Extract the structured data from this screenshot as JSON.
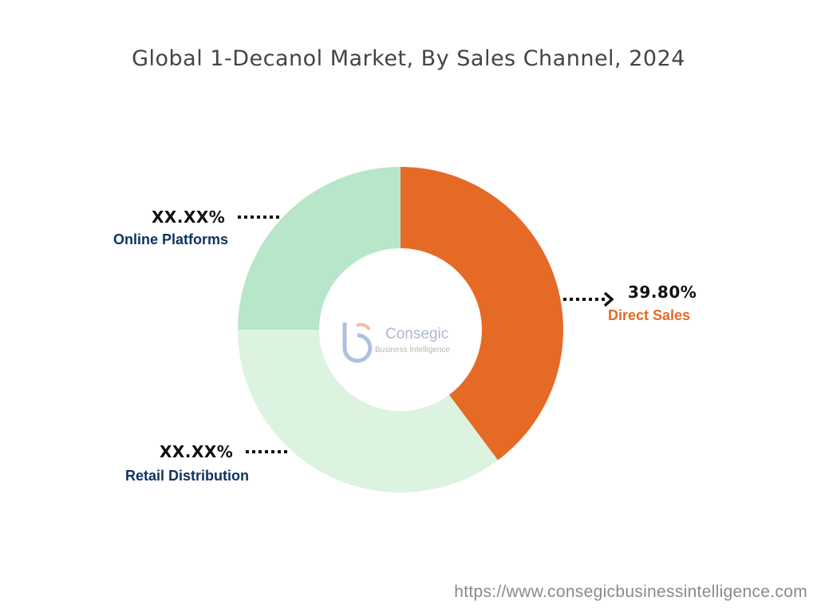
{
  "chart_data": {
    "type": "donut",
    "title": "Global 1-Decanol Market, By Sales Channel, 2024",
    "segments": [
      {
        "name": "Direct Sales",
        "value": 39.8,
        "value_label": "39.80%",
        "color": "#e56a26",
        "label_color": "#e56a26"
      },
      {
        "name": "Retail Distribution",
        "value": 35.2,
        "value_label": "XX.XX%",
        "color": "#dbf3df",
        "label_color": "#0f3460"
      },
      {
        "name": "Online Platforms",
        "value": 25.0,
        "value_label": "XX.XX%",
        "color": "#b7e6c9",
        "label_color": "#0f3460"
      }
    ]
  },
  "logo": {
    "name": "Consegic",
    "tagline": "Business Intelligence"
  },
  "footer": {
    "url": "https://www.consegicbusinessintelligence.com"
  }
}
